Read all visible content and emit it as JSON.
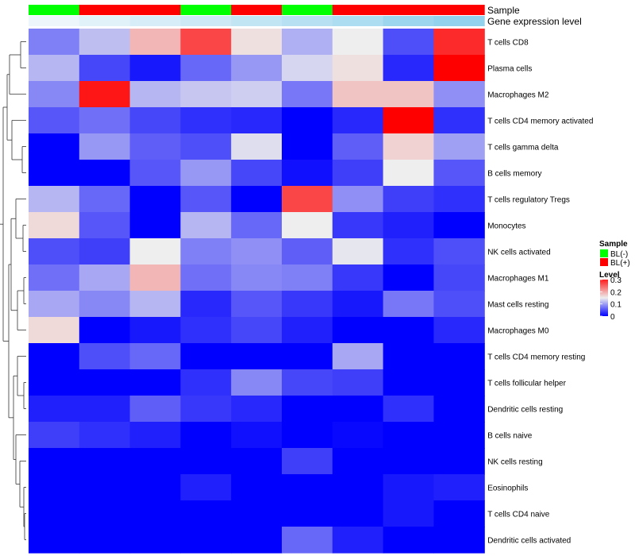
{
  "chart_data": {
    "type": "heatmap",
    "annotation_labels": {
      "sample": "Sample",
      "expression": "Gene expression level"
    },
    "sample_groups": [
      "BL(-)",
      "BL(+)",
      "BL(+)",
      "BL(-)",
      "BL(+)",
      "BL(-)",
      "BL(+)",
      "BL(+)",
      "BL(+)"
    ],
    "expression_level": [
      0.05,
      0.15,
      0.25,
      0.35,
      0.45,
      0.55,
      0.65,
      0.8,
      0.9
    ],
    "rows": [
      "T cells CD8",
      "Plasma cells",
      "Macrophages M2",
      "T cells CD4 memory activated",
      "T cells gamma delta",
      "B cells memory",
      "T cells regulatory  Tregs",
      "Monocytes",
      "NK cells activated",
      "Macrophages M1",
      "Mast cells resting",
      "Macrophages M0",
      "T cells CD4 memory resting",
      "T cells follicular helper",
      "Dendritic cells resting",
      "B cells naive",
      "NK cells resting",
      "Eosinophils",
      "T cells CD4 naive",
      "Dendritic cells activated"
    ],
    "values": [
      [
        0.08,
        0.12,
        0.19,
        0.27,
        0.16,
        0.11,
        0.15,
        0.05,
        0.29
      ],
      [
        0.115,
        0.045,
        0.015,
        0.065,
        0.095,
        0.135,
        0.16,
        0.025,
        0.32
      ],
      [
        0.085,
        0.305,
        0.115,
        0.125,
        0.13,
        0.075,
        0.18,
        0.18,
        0.09
      ],
      [
        0.055,
        0.07,
        0.045,
        0.03,
        0.025,
        0.0,
        0.025,
        0.32,
        0.03
      ],
      [
        0.0,
        0.095,
        0.06,
        0.05,
        0.14,
        0.0,
        0.06,
        0.17,
        0.1
      ],
      [
        0.0,
        0.0,
        0.055,
        0.095,
        0.045,
        0.01,
        0.04,
        0.15,
        0.055
      ],
      [
        0.115,
        0.065,
        0.0,
        0.055,
        0.0,
        0.27,
        0.09,
        0.04,
        0.03
      ],
      [
        0.165,
        0.055,
        0.0,
        0.115,
        0.065,
        0.15,
        0.035,
        0.02,
        0.0
      ],
      [
        0.05,
        0.04,
        0.15,
        0.08,
        0.09,
        0.06,
        0.145,
        0.03,
        0.05
      ],
      [
        0.07,
        0.105,
        0.19,
        0.07,
        0.085,
        0.08,
        0.035,
        0.0,
        0.045
      ],
      [
        0.105,
        0.085,
        0.115,
        0.025,
        0.055,
        0.035,
        0.015,
        0.075,
        0.05
      ],
      [
        0.165,
        0.0,
        0.015,
        0.03,
        0.045,
        0.02,
        0.0,
        0.0,
        0.025
      ],
      [
        0.0,
        0.05,
        0.065,
        0.0,
        0.0,
        0.0,
        0.105,
        0.0,
        0.0
      ],
      [
        0.0,
        0.0,
        0.0,
        0.03,
        0.085,
        0.045,
        0.04,
        0.0,
        0.0
      ],
      [
        0.02,
        0.02,
        0.06,
        0.035,
        0.025,
        0.0,
        0.0,
        0.03,
        0.0
      ],
      [
        0.04,
        0.03,
        0.02,
        0.0,
        0.01,
        0.0,
        0.005,
        0.0,
        0.0
      ],
      [
        0.0,
        0.0,
        0.0,
        0.0,
        0.0,
        0.04,
        0.0,
        0.0,
        0.0
      ],
      [
        0.0,
        0.0,
        0.0,
        0.02,
        0.0,
        0.0,
        0.0,
        0.015,
        0.02
      ],
      [
        0.0,
        0.0,
        0.0,
        0.0,
        0.0,
        0.0,
        0.0,
        0.015,
        0.0
      ],
      [
        0.0,
        0.0,
        0.0,
        0.0,
        0.0,
        0.065,
        0.02,
        0.0,
        0.0
      ]
    ],
    "color_scale": {
      "low": "#0000FF",
      "mid": "#EEEEEE",
      "high": "#FF0000",
      "domain": [
        0,
        0.15,
        0.32
      ]
    },
    "expression_colors": [
      "#F2F8FC",
      "#87CEEB"
    ],
    "legend": {
      "sample_title": "Sample",
      "sample_entries": [
        {
          "label": "BL(-)",
          "color": "#00FF00"
        },
        {
          "label": "BL(+)",
          "color": "#FF0000"
        }
      ],
      "level_title": "Level",
      "level_ticks": [
        "0.3",
        "0.2",
        "0.1",
        "0"
      ],
      "level_tick_values": [
        0.3,
        0.2,
        0.1,
        0
      ],
      "position": "right"
    },
    "row_dendrogram": true
  }
}
